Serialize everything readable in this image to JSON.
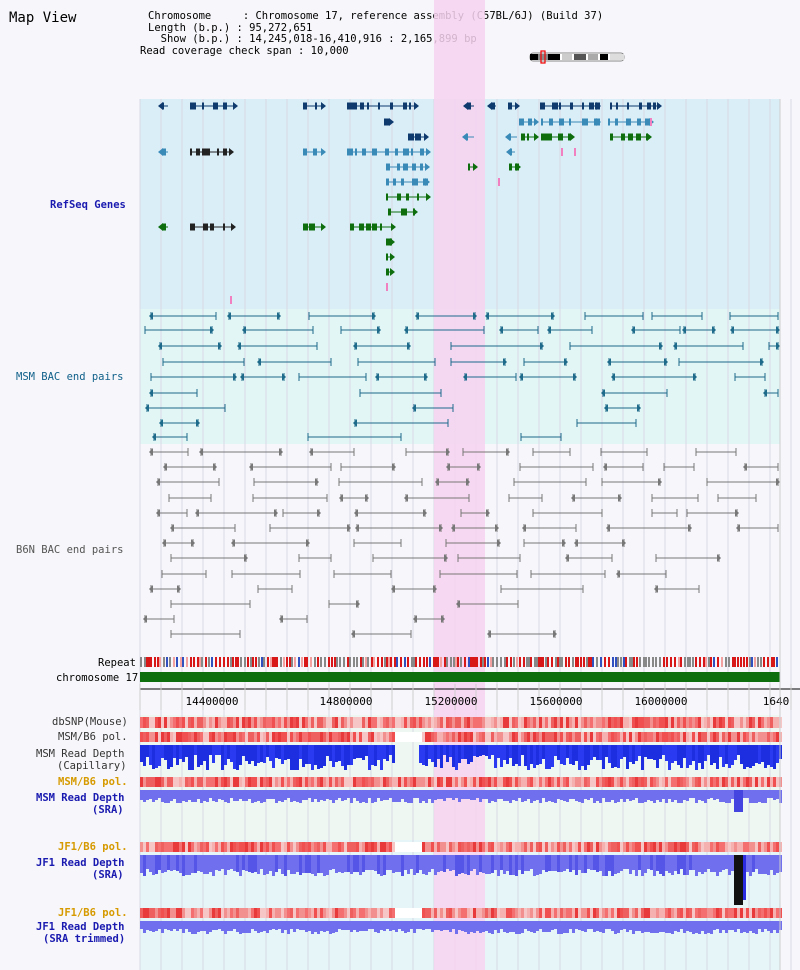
{
  "app_title": "Map View",
  "info": {
    "chromosome_line": "Chromosome     : Chromosome 17, reference assembly (C57BL/6J) (Build 37)",
    "length_line": "Length (b.p.) : 95,272,651",
    "show_line": "  Show (b.p.) : 14,245,018-16,410,916 : 2,165,899 bp",
    "coverage_line": "Read coverage check span : 10,000"
  },
  "tracks": {
    "refseq": "RefSeq Genes",
    "msm_bac": "MSM BAC end pairs",
    "b6n_bac": "B6N BAC end pairs",
    "repeat": "Repeat",
    "chromosome": "chromosome 17",
    "dbsnp": "dbSNP(Mouse)",
    "msm_pol_1": "MSM/B6 pol.",
    "msm_depth_cap_1": "MSM Read Depth",
    "msm_depth_cap_2": "(Capillary)",
    "msm_pol_2": "MSM/B6 pol.",
    "msm_depth_sra_1": "MSM Read Depth",
    "msm_depth_sra_2": "(SRA)",
    "jf1_pol_1": "JF1/B6 pol.",
    "jf1_depth_sra_1": "JF1 Read Depth",
    "jf1_depth_sra_2": "(SRA)",
    "jf1_pol_2": "JF1/B6 pol.",
    "jf1_depth_trim_1": "JF1 Read Depth",
    "jf1_depth_trim_2": "(SRA trimmed)"
  },
  "axis_ticks": [
    "14400000",
    "14800000",
    "15200000",
    "15600000",
    "16000000",
    "1640"
  ],
  "colors": {
    "refseq_bg": "#daeef8",
    "msm_bg": "#e2f6f6",
    "highlight": "#f7d2f0",
    "chromosome_bar": "#0d6e0d",
    "gene_dark": "#0e3a6e",
    "gene_mid": "#3a8ab8",
    "gene_green": "#0e6e0e",
    "bac_teal": "#1d6a8a",
    "bac_gray": "#777777",
    "depth_blue": "#1d2ee0",
    "depth_light": "#7070ee"
  }
}
